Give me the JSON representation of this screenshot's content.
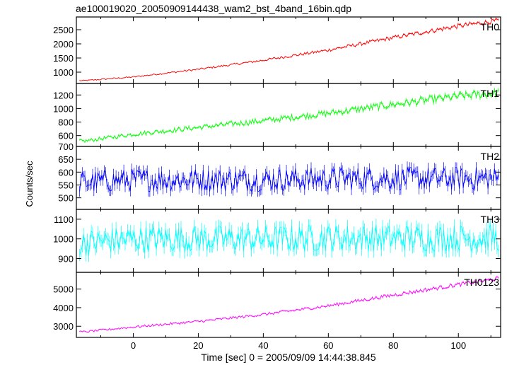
{
  "title": "ae100019020_20050909144438_wam2_bst_4band_16bin.qdp",
  "ylabel": "Counts/sec",
  "xlabel": "Time [sec] 0 = 2005/09/09 14:44:38.845",
  "chart_data": {
    "type": "line",
    "x_range": [
      -17.5,
      113
    ],
    "x_ticks": [
      0,
      20,
      40,
      60,
      80,
      100
    ],
    "panels": [
      {
        "name": "TH0",
        "color": "#ff0000",
        "ylim": [
          600,
          2950
        ],
        "y_ticks": [
          1000,
          1500,
          2000,
          2500
        ],
        "trend": [
          [
            -15,
            700
          ],
          [
            0,
            830
          ],
          [
            20,
            1100
          ],
          [
            40,
            1420
          ],
          [
            60,
            1780
          ],
          [
            80,
            2220
          ],
          [
            100,
            2630
          ],
          [
            112,
            2820
          ]
        ]
      },
      {
        "name": "TH1",
        "color": "#00ff00",
        "ylim": [
          440,
          1370
        ],
        "y_ticks": [
          600,
          800,
          1000,
          1200
        ],
        "trend": [
          [
            -15,
            520
          ],
          [
            0,
            620
          ],
          [
            20,
            720
          ],
          [
            40,
            820
          ],
          [
            60,
            930
          ],
          [
            80,
            1060
          ],
          [
            100,
            1180
          ],
          [
            112,
            1230
          ]
        ]
      },
      {
        "name": "TH2",
        "color": "#0000ff",
        "ylim": [
          455,
          700
        ],
        "y_ticks": [
          500,
          550,
          600,
          650,
          700
        ],
        "trend": [
          [
            -15,
            560
          ],
          [
            0,
            570
          ],
          [
            20,
            570
          ],
          [
            40,
            570
          ],
          [
            60,
            575
          ],
          [
            80,
            575
          ],
          [
            100,
            575
          ],
          [
            112,
            575
          ]
        ]
      },
      {
        "name": "TH3",
        "color": "#00ffff",
        "ylim": [
          830,
          1150
        ],
        "y_ticks": [
          900,
          1000,
          1100
        ],
        "trend": [
          [
            -15,
            980
          ],
          [
            0,
            1000
          ],
          [
            20,
            1000
          ],
          [
            40,
            1000
          ],
          [
            60,
            1005
          ],
          [
            80,
            1005
          ],
          [
            100,
            1005
          ],
          [
            112,
            1005
          ]
        ]
      },
      {
        "name": "TH0123",
        "color": "#ff00ff",
        "ylim": [
          2400,
          5900
        ],
        "y_ticks": [
          3000,
          4000,
          5000
        ],
        "trend": [
          [
            -15,
            2700
          ],
          [
            0,
            2960
          ],
          [
            20,
            3260
          ],
          [
            40,
            3630
          ],
          [
            60,
            4100
          ],
          [
            80,
            4680
          ],
          [
            100,
            5240
          ],
          [
            112,
            5560
          ]
        ]
      }
    ]
  }
}
